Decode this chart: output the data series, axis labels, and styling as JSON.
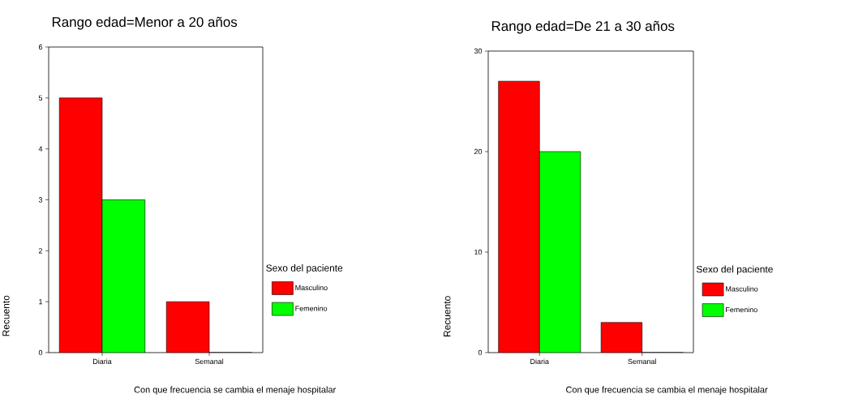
{
  "chart_data": [
    {
      "type": "bar",
      "title": "Rango edad=Menor a 20 años",
      "xlabel": "Con que frecuencia se cambia el menaje hospitalar",
      "ylabel": "Recuento",
      "categories": [
        "Diaria",
        "Semanal"
      ],
      "series": [
        {
          "name": "Masculino",
          "color": "#ff0000",
          "values": [
            5,
            1
          ]
        },
        {
          "name": "Femenino",
          "color": "#00ff00",
          "values": [
            3,
            0
          ]
        }
      ],
      "ylim": [
        0,
        6
      ],
      "yticks": [
        0,
        1,
        2,
        3,
        4,
        5,
        6
      ],
      "legend": "right",
      "legend_title": "Sexo del paciente"
    },
    {
      "type": "bar",
      "title": "Rango edad=De 21 a 30 años",
      "xlabel": "Con que frecuencia se cambia el menaje hospitalar",
      "ylabel": "Recuento",
      "categories": [
        "Diaria",
        "Semanal"
      ],
      "series": [
        {
          "name": "Masculino",
          "color": "#ff0000",
          "values": [
            27,
            3
          ]
        },
        {
          "name": "Femenino",
          "color": "#00ff00",
          "values": [
            20,
            0
          ]
        }
      ],
      "ylim": [
        0,
        30
      ],
      "yticks": [
        0,
        10,
        20,
        30
      ],
      "legend": "right",
      "legend_title": "Sexo del paciente"
    }
  ]
}
